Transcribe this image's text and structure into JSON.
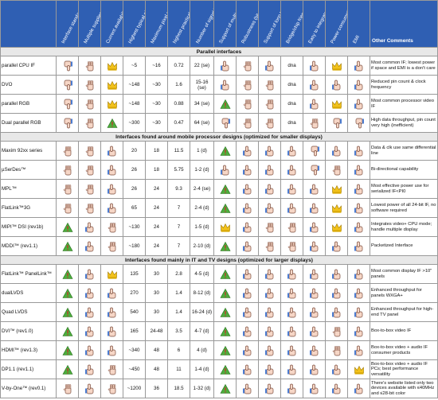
{
  "header": {
    "columns": [
      "Interface standardized?",
      "Multiple supplier of technology?",
      "Current availability",
      "Highest typical pixel clk frequency (MHz)",
      "Maximum pixel color depth (bpp)",
      "highest practical data throughput (Gbps)",
      "Number of signal lines (typical)",
      "Support of multiple displays?",
      "Robustness (bit error handling?)",
      "Support of long transmission lines?",
      "Bridge/chip friendly technology?",
      "Easy to integrate into new product design?",
      "Power consumption",
      "EMI",
      "Other Comments"
    ]
  },
  "sections": [
    {
      "title": "Parallel interfaces",
      "rows": [
        {
          "name": "parallel CPU IF",
          "clk": "~5",
          "depth": "~16",
          "throughput": "0.72",
          "lines": "22 (se)",
          "bridge": "dna",
          "comment": "Most common IF; lowest power if space and EMI is a don't care"
        },
        {
          "name": "DVO",
          "clk": "~148",
          "depth": "~30",
          "throughput": "1.6",
          "lines": "15-16 (se)",
          "bridge": "dna",
          "comment": "Reduced pin count & clock frequency"
        },
        {
          "name": "parallel RGB",
          "clk": "~148",
          "depth": "~30",
          "throughput": "0.88",
          "lines": "34 (se)",
          "bridge": "dna",
          "comment": "Most common processor video IF"
        },
        {
          "name": "Dual parallel RGB",
          "clk": "~300",
          "depth": "~30",
          "throughput": "0.47",
          "lines": "64 (se)",
          "bridge": "dna",
          "comment": "High data throughput, pin count very high (inefficient)"
        }
      ]
    },
    {
      "title": "Interfaces found around mobile processor designs (optimized for smaller displays)",
      "rows": [
        {
          "name": "Maxim 92xx series",
          "clk": "20",
          "depth": "18",
          "throughput": "11.5",
          "lines": "1 (d)",
          "comment": "Data & clk use same differential line"
        },
        {
          "name": "µSerDes™",
          "clk": "26",
          "depth": "18",
          "throughput": "5.75",
          "lines": "1-2 (d)",
          "comment": "Bi-directional capability"
        },
        {
          "name": "MPL™",
          "clk": "26",
          "depth": "24",
          "throughput": "9.3",
          "lines": "2-4 (se)",
          "comment": "Most effective power use for serialized IF<PI0"
        },
        {
          "name": "FlatLink™3G",
          "clk": "65",
          "depth": "24",
          "throughput": "7",
          "lines": "2-4 (d)",
          "comment": "Lowest power of all 24-bit IF, no software required"
        },
        {
          "name": "MIPI™ DSI (rev1b)",
          "clk": "~130",
          "depth": "24",
          "throughput": "7",
          "lines": "1-5 (d)",
          "comment": "Integrates video+ CPU mode; handle multiple display"
        },
        {
          "name": "MDDI™ (rev1.1)",
          "clk": "~180",
          "depth": "24",
          "throughput": "7",
          "lines": "2-10 (d)",
          "comment": "Packetized Interface"
        }
      ]
    },
    {
      "title": "Interfaces found mainly in IT and TV designs (optimized for larger displays)",
      "rows": [
        {
          "name": "FlatLink™ PanelLink™",
          "clk": "135",
          "depth": "30",
          "throughput": "2.8",
          "lines": "4-5 (d)",
          "comment": "Most common display IF >10\" panels"
        },
        {
          "name": "dualLVDS",
          "clk": "270",
          "depth": "30",
          "throughput": "1.4",
          "lines": "8-12 (d)",
          "comment": "Enhanced throughput for panels WXGA+"
        },
        {
          "name": "Quad LVDS",
          "clk": "540",
          "depth": "30",
          "throughput": "1.4",
          "lines": "16-24 (d)",
          "comment": "Enhanced throughput for high-end TV panel"
        },
        {
          "name": "DVI™ (rev1.0)",
          "clk": "165",
          "depth": "24-48",
          "throughput": "3.5",
          "lines": "4-7 (d)",
          "comment": "Box-to-box video IF"
        },
        {
          "name": "HDMI™ (rev1.3)",
          "clk": "~340",
          "depth": "48",
          "throughput": "6",
          "lines": "4 (d)",
          "comment": "Box-to-box video + audio IF consumer products"
        },
        {
          "name": "DP1.1 (rev1.1)",
          "clk": "~450",
          "depth": "48",
          "throughput": "11",
          "lines": "1-4 (d)",
          "comment": "Box-to-box video + audio IF PCs; best performance versatility"
        },
        {
          "name": "V-by-One™ (rev0.1)",
          "clk": "~1200",
          "depth": "36",
          "throughput": "18.5",
          "lines": "1-32 (d)",
          "comment": "There's website listed only two devices available with ≤40MHz and ≤28-bit color"
        }
      ]
    }
  ]
}
